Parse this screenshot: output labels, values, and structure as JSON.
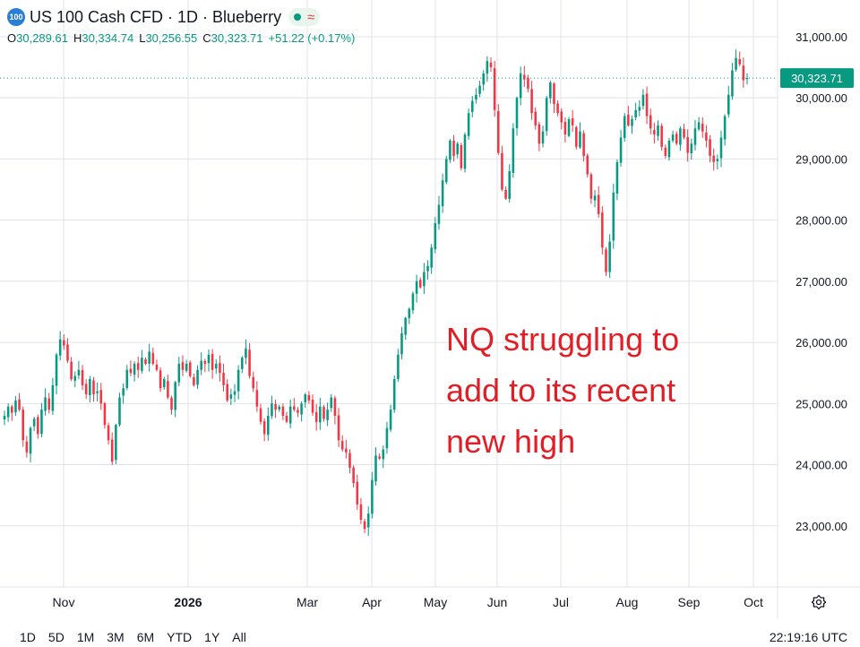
{
  "header": {
    "symbol_badge": "100",
    "title": "US 100 Cash CFD · 1D · Blueberry",
    "status_wave": "≈",
    "ohlc": {
      "o_label": "O",
      "o_value": "30,289.61",
      "h_label": "H",
      "h_value": "30,334.74",
      "l_label": "L",
      "l_value": "30,256.55",
      "c_label": "C",
      "c_value": "30,323.71",
      "change": "+51.22 (+0.17%)"
    }
  },
  "annotation": {
    "line1": "NQ struggling to",
    "line2": "add to its recent",
    "line3": "new high"
  },
  "price_label": "30,323.71",
  "colors": {
    "up": "#089981",
    "down": "#f23645",
    "annotation": "#e01e26",
    "grid": "#e0e3eb",
    "price_tag": "#089981"
  },
  "bottom_bar": {
    "ranges": [
      "1D",
      "5D",
      "1M",
      "3M",
      "6M",
      "YTD",
      "1Y",
      "All"
    ],
    "clock": "22:19:16 UTC"
  },
  "chart_data": {
    "type": "candlestick",
    "title": "",
    "xlabel": "",
    "ylabel": "",
    "ylim": [
      22000,
      31600
    ],
    "y_ticks": [
      23000,
      24000,
      25000,
      26000,
      27000,
      28000,
      29000,
      30000,
      31000
    ],
    "y_tick_labels": [
      "23,000.00",
      "24,000.00",
      "25,000.00",
      "26,000.00",
      "27,000.00",
      "28,000.00",
      "29,000.00",
      "30,000.00",
      "31,000.00"
    ],
    "x_tick_labels": [
      "Nov",
      "2026",
      "Mar",
      "Apr",
      "May",
      "Jun",
      "Jul",
      "Aug",
      "Sep",
      "Oct"
    ],
    "last_price": 30323.71,
    "closes": [
      24800,
      24950,
      24850,
      25050,
      24900,
      24400,
      24200,
      24600,
      24750,
      24500,
      24900,
      25100,
      24900,
      25300,
      25800,
      26050,
      25950,
      25700,
      25400,
      25450,
      25550,
      25300,
      25150,
      25400,
      25150,
      25200,
      25000,
      24650,
      24400,
      24050,
      24650,
      25100,
      25250,
      25550,
      25500,
      25650,
      25550,
      25750,
      25650,
      25850,
      25650,
      25550,
      25250,
      25400,
      25100,
      24900,
      25350,
      25650,
      25550,
      25650,
      25450,
      25300,
      25550,
      25700,
      25650,
      25800,
      25550,
      25650,
      25500,
      25300,
      25050,
      25150,
      25200,
      25550,
      25750,
      25900,
      25450,
      25250,
      24950,
      24700,
      24500,
      24800,
      25000,
      24900,
      24950,
      24800,
      24700,
      24950,
      24900,
      24850,
      25000,
      25150,
      25050,
      24850,
      24700,
      24950,
      24750,
      24900,
      25100,
      24800,
      24400,
      24250,
      24200,
      23950,
      23700,
      23350,
      23100,
      22950,
      23200,
      23750,
      24150,
      24100,
      24250,
      24600,
      24900,
      25400,
      25800,
      26150,
      26400,
      26550,
      26800,
      27000,
      26900,
      27150,
      27250,
      27550,
      27950,
      28250,
      28650,
      29000,
      29300,
      29050,
      29250,
      28850,
      29400,
      29750,
      29950,
      30050,
      30200,
      30400,
      30600,
      30500,
      29800,
      29100,
      28500,
      28350,
      28800,
      29500,
      30000,
      30400,
      30300,
      30150,
      29750,
      29550,
      29250,
      29450,
      30000,
      30250,
      29900,
      29750,
      29600,
      29400,
      29650,
      29550,
      29200,
      29450,
      29050,
      28750,
      28350,
      28400,
      28100,
      27550,
      27150,
      27650,
      28450,
      28950,
      29350,
      29700,
      29550,
      29650,
      29800,
      29850,
      30050,
      29700,
      29500,
      29400,
      29550,
      29200,
      29050,
      29300,
      29400,
      29250,
      29500,
      29350,
      29100,
      29250,
      29500,
      29600,
      29450,
      29300,
      29050,
      28950,
      29000,
      29350,
      29700,
      30050,
      30450,
      30650,
      30550,
      30289,
      30323
    ]
  }
}
